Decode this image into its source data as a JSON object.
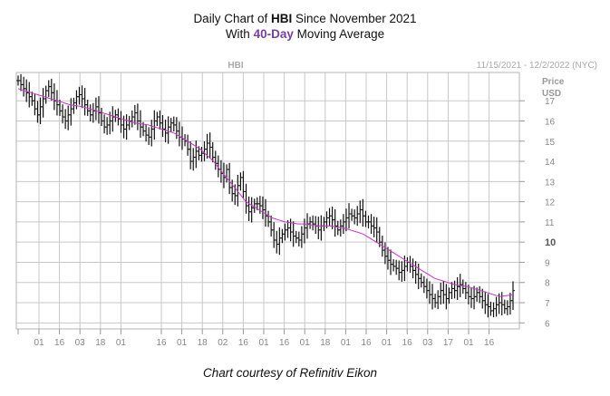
{
  "header": {
    "line1_prefix": "Daily Chart of ",
    "line1_ticker": "HBI",
    "line1_suffix": " Since November 2021",
    "line2_prefix": "With ",
    "line2_highlight": "40-Day",
    "line2_suffix": " Moving Average"
  },
  "footer": {
    "credit": "Chart courtesy of Refinitiv Eikon"
  },
  "chart_data": {
    "type": "line",
    "symbol": "HBI",
    "date_range": "11/15/2021 - 12/2/2022 (NYC)",
    "ylabel_line1": "Price",
    "ylabel_line2": "USD",
    "ylim": [
      5.7,
      18.4
    ],
    "y_ticks": [
      6,
      7,
      8,
      9,
      10,
      11,
      12,
      13,
      14,
      15,
      16,
      17
    ],
    "y_ticks_bold": [
      10
    ],
    "x_tick_labels": [
      "01",
      "16",
      "03",
      "18",
      "01",
      "16",
      "01",
      "18",
      "02",
      "16",
      "01",
      "16",
      "01",
      "18",
      "01",
      "16",
      "01",
      "16",
      "03",
      "17",
      "01",
      "16"
    ],
    "grid": true,
    "colors": {
      "price_bars": "#111111",
      "moving_average": "#cc33cc",
      "grid": "#c8c8c8",
      "title_accent": "#7a3fa0"
    },
    "series": [
      {
        "name": "HBI",
        "values": [
          18.0,
          17.8,
          17.6,
          17.4,
          17.2,
          17.0,
          16.6,
          16.3,
          16.7,
          17.1,
          17.5,
          17.7,
          17.4,
          17.0,
          16.8,
          16.5,
          16.2,
          16.0,
          16.3,
          16.6,
          16.9,
          17.2,
          17.3,
          17.1,
          16.8,
          16.5,
          16.3,
          16.5,
          16.7,
          16.4,
          16.0,
          15.7,
          15.8,
          16.0,
          16.2,
          16.3,
          16.1,
          15.8,
          15.6,
          15.8,
          16.0,
          16.2,
          16.4,
          16.0,
          15.7,
          15.5,
          15.3,
          15.2,
          15.6,
          16.0,
          16.2,
          15.9,
          15.6,
          15.4,
          15.7,
          15.9,
          15.8,
          15.5,
          15.2,
          15.1,
          15.0,
          14.6,
          14.0,
          14.2,
          14.5,
          14.3,
          14.4,
          14.6,
          14.9,
          14.7,
          14.2,
          13.9,
          13.6,
          13.4,
          13.2,
          13.6,
          12.7,
          12.4,
          12.3,
          12.8,
          13.2,
          12.5,
          11.8,
          11.5,
          11.7,
          11.9,
          11.9,
          11.8,
          11.6,
          11.3,
          11.0,
          10.6,
          10.1,
          9.9,
          10.2,
          10.4,
          10.6,
          10.7,
          10.5,
          10.3,
          10.2,
          10.1,
          10.4,
          10.7,
          10.9,
          11.0,
          10.9,
          10.8,
          10.6,
          10.8,
          11.0,
          11.2,
          11.3,
          11.1,
          10.8,
          10.6,
          10.8,
          11.0,
          11.2,
          11.4,
          11.3,
          11.2,
          11.4,
          11.6,
          11.3,
          11.0,
          11.0,
          10.8,
          10.7,
          10.5,
          10.0,
          9.6,
          9.3,
          9.1,
          8.9,
          8.8,
          8.7,
          8.5,
          8.6,
          8.8,
          9.0,
          8.8,
          8.6,
          8.4,
          8.2,
          8.0,
          7.8,
          7.6,
          7.4,
          7.2,
          7.0,
          7.3,
          7.6,
          7.4,
          7.2,
          7.5,
          7.7,
          7.6,
          7.8,
          7.9,
          7.7,
          7.5,
          7.3,
          7.2,
          7.3,
          7.5,
          7.3,
          7.1,
          6.9,
          6.8,
          6.6,
          6.7,
          6.9,
          7.0,
          6.9,
          6.7,
          6.8,
          7.1,
          7.6
        ]
      },
      {
        "name": "40-Day Moving Average",
        "values": [
          17.6,
          17.5,
          17.4,
          17.3,
          17.2,
          17.1,
          17.0,
          16.9,
          16.8,
          16.75,
          16.7,
          16.6,
          16.5,
          16.4,
          16.3,
          16.2,
          16.1,
          16.0,
          15.9,
          15.85,
          15.8,
          15.7,
          15.6,
          15.5,
          15.4,
          15.2,
          15.0,
          14.8,
          14.6,
          14.3,
          14.0,
          13.6,
          13.2,
          12.8,
          12.4,
          12.0,
          11.8,
          11.6,
          11.4,
          11.2,
          11.1,
          11.0,
          10.95,
          10.9,
          10.9,
          10.85,
          10.8,
          10.8,
          10.8,
          10.75,
          10.7,
          10.6,
          10.5,
          10.4,
          10.2,
          10.0,
          9.8,
          9.6,
          9.4,
          9.2,
          9.0,
          8.8,
          8.6,
          8.4,
          8.2,
          8.1,
          8.0,
          7.9,
          7.85,
          7.8,
          7.7,
          7.6,
          7.5,
          7.4,
          7.3,
          7.35,
          7.4
        ]
      }
    ]
  }
}
